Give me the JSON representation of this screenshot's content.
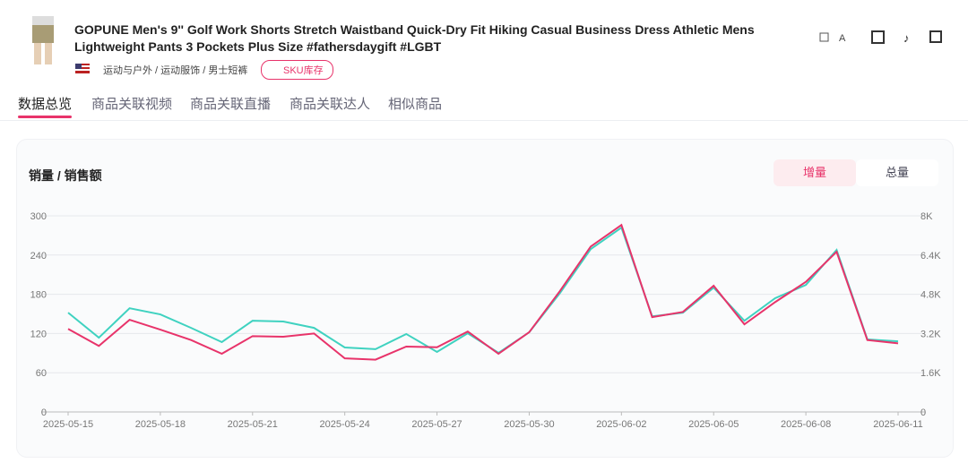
{
  "header": {
    "title": "GOPUNE Men's 9'' Golf Work Shorts Stretch Waistband Quick-Dry Fit Hiking Casual Business Dress Athletic Mens Lightweight Pants 3 Pockets Plus Size #fathersdaygift #LGBT",
    "category": "运动与户外 / 运动服饰 / 男士短裤",
    "badge": "SKU库存"
  },
  "tabs": [
    "数据总览",
    "商品关联视频",
    "商品关联直播",
    "商品关联达人",
    "相似商品"
  ],
  "toggle": [
    "增量",
    "总量"
  ],
  "chart_data": {
    "type": "line",
    "title": "销量 / 销售额",
    "categories": [
      "2025-05-15",
      null,
      null,
      "2025-05-18",
      null,
      null,
      "2025-05-21",
      null,
      null,
      "2025-05-24",
      null,
      null,
      "2025-05-27",
      null,
      null,
      "2025-05-30",
      null,
      null,
      "2025-06-02",
      null,
      null,
      "2025-06-05",
      null,
      null,
      "2025-06-08",
      null,
      null,
      "2025-06-11"
    ],
    "series": [
      {
        "color": "#e8336a",
        "values": [
          127,
          101,
          141,
          126,
          110,
          89,
          116,
          115,
          120,
          82,
          80,
          100,
          99,
          123,
          89,
          122,
          185,
          253,
          286,
          145,
          153,
          193,
          134,
          168,
          199,
          245,
          110,
          105
        ]
      },
      {
        "color": "#3fd2c0",
        "axis": "y2",
        "values": [
          4050,
          3030,
          4230,
          3980,
          3430,
          2850,
          3720,
          3690,
          3430,
          2630,
          2560,
          3180,
          2450,
          3210,
          2410,
          3250,
          4850,
          6640,
          7520,
          3900,
          4050,
          5070,
          3720,
          4640,
          5180,
          6610,
          2960,
          2880
        ]
      }
    ],
    "ylim": [
      0,
      300
    ],
    "yticks": [
      0,
      60,
      120,
      180,
      240,
      300
    ],
    "y2lim": [
      0,
      8000
    ],
    "y2ticks": [
      0,
      {
        "value": 1600,
        "label": "1.6K"
      },
      {
        "value": 3200,
        "label": "3.2K"
      },
      {
        "value": 4800,
        "label": "4.8K"
      },
      {
        "value": 6400,
        "label": "6.4K"
      },
      {
        "value": 8000,
        "label": "8K"
      }
    ],
    "grid": true
  }
}
